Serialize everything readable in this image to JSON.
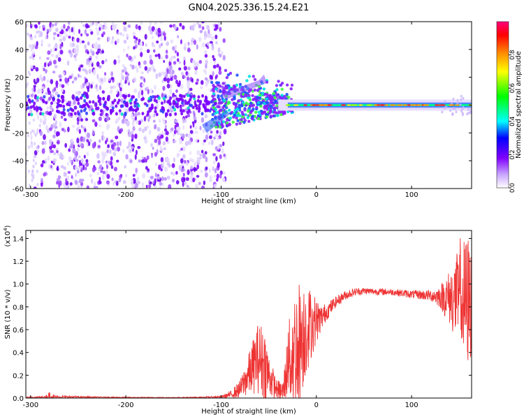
{
  "chart_data": [
    {
      "type": "heatmap",
      "title": "GN04.2025.336.15.24.E21",
      "xlabel": "Height of straight line (km)",
      "ylabel": "Frequency (Hz)",
      "xlim": [
        -305,
        163
      ],
      "ylim": [
        -60,
        60
      ],
      "xticks": [
        -300,
        -200,
        -100,
        0,
        100
      ],
      "yticks": [
        -60,
        -40,
        -20,
        0,
        20,
        40,
        60
      ],
      "colorbar": {
        "label": "Normalized spectral amplitude",
        "range": [
          0.0,
          1.0
        ],
        "ticks": [
          "0.0",
          "0.2",
          "0.4",
          "0.6",
          "0.8"
        ],
        "tick_values": [
          0.0,
          0.2,
          0.4,
          0.6,
          0.8
        ],
        "colors": [
          "#ffffff",
          "#9a00ff",
          "#0000ff",
          "#00ffff",
          "#00ff00",
          "#ffff00",
          "#ff0000",
          "#ff0080"
        ]
      },
      "regions": [
        {
          "name": "noise",
          "x": [
            -300,
            -105
          ],
          "f": [
            -60,
            60
          ],
          "amplitude": 0.15
        },
        {
          "name": "transition",
          "x": [
            -105,
            -30
          ],
          "f": [
            -15,
            15
          ],
          "amplitude": 0.45
        },
        {
          "name": "stable-line",
          "x": [
            -30,
            163
          ],
          "f": [
            -2,
            2
          ],
          "amplitude": 0.7
        }
      ]
    },
    {
      "type": "line",
      "xlabel": "Height of straight line (km)",
      "ylabel": "SNR (10 * v/v)",
      "scale_label": "(x10",
      "scale_exp": "4",
      "scale_close": ")",
      "xlim": [
        -305,
        163
      ],
      "ylim": [
        0,
        1.47
      ],
      "xticks": [
        -300,
        -200,
        -100,
        0,
        100
      ],
      "yticks": [
        "0.0",
        "0.2",
        "0.4",
        "0.6",
        "0.8",
        "1.0",
        "1.2",
        "1.4"
      ],
      "ytick_values": [
        0.0,
        0.2,
        0.4,
        0.6,
        0.8,
        1.0,
        1.2,
        1.4
      ],
      "series": [
        {
          "name": "SNR",
          "color": "#ee3333",
          "envelope": {
            "x": [
              -305,
              -285,
              -280,
              -275,
              -260,
              -240,
              -200,
              -150,
              -120,
              -100,
              -90,
              -80,
              -70,
              -62,
              -55,
              -50,
              -42,
              -35,
              -30,
              -25,
              -20,
              -15,
              -10,
              -5,
              0,
              5,
              10,
              20,
              30,
              40,
              50,
              60,
              80,
              100,
              120,
              130,
              140,
              150,
              155,
              160,
              163
            ],
            "base": [
              0.005,
              0.008,
              0.02,
              0.01,
              0.01,
              0.008,
              0.005,
              0.004,
              0.006,
              0.01,
              0.03,
              0.08,
              0.22,
              0.35,
              0.32,
              0.2,
              0.08,
              0.05,
              0.3,
              0.4,
              0.45,
              0.55,
              0.62,
              0.65,
              0.68,
              0.7,
              0.75,
              0.84,
              0.9,
              0.93,
              0.94,
              0.935,
              0.93,
              0.91,
              0.9,
              0.89,
              0.88,
              0.87,
              0.85,
              0.85,
              0.85
            ],
            "amp": [
              0.005,
              0.01,
              0.04,
              0.015,
              0.01,
              0.006,
              0.004,
              0.003,
              0.005,
              0.01,
              0.03,
              0.08,
              0.2,
              0.3,
              0.35,
              0.2,
              0.08,
              0.1,
              0.3,
              0.5,
              0.6,
              0.5,
              0.4,
              0.3,
              0.2,
              0.12,
              0.08,
              0.05,
              0.04,
              0.035,
              0.03,
              0.03,
              0.03,
              0.035,
              0.05,
              0.1,
              0.25,
              0.45,
              0.55,
              0.6,
              0.5
            ]
          }
        }
      ]
    }
  ]
}
